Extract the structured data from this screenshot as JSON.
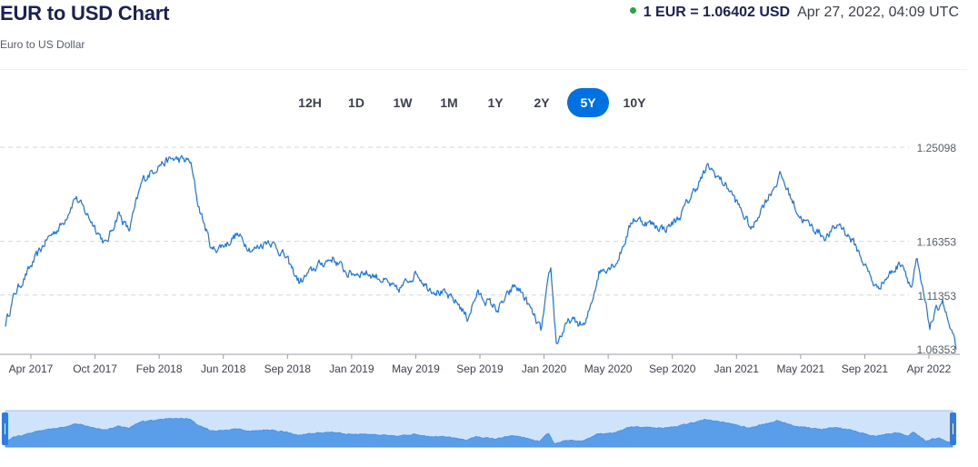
{
  "header": {
    "title": "EUR to USD Chart",
    "subtitle": "Euro to US Dollar",
    "rate": "1 EUR = 1.06402 USD",
    "timestamp": "Apr 27, 2022, 04:09 UTC"
  },
  "range_tabs": [
    {
      "label": "12H",
      "active": false
    },
    {
      "label": "1D",
      "active": false
    },
    {
      "label": "1W",
      "active": false
    },
    {
      "label": "1M",
      "active": false
    },
    {
      "label": "1Y",
      "active": false
    },
    {
      "label": "2Y",
      "active": false
    },
    {
      "label": "5Y",
      "active": true
    },
    {
      "label": "10Y",
      "active": false
    }
  ],
  "colors": {
    "line": "#1a73e8",
    "active_tab": "#0071e3",
    "navigator_fill": "#cfe3fb",
    "navigator_area": "#5a9eea",
    "navigator_handle": "#2f7ce3"
  },
  "chart_data": {
    "type": "line",
    "title": "",
    "xlabel": "",
    "ylabel": "",
    "x_ticks": [
      "Apr 2017",
      "Oct 2017",
      "Feb 2018",
      "Jun 2018",
      "Sep 2018",
      "Jan 2019",
      "May 2019",
      "Sep 2019",
      "Jan 2020",
      "May 2020",
      "Sep 2020",
      "Jan 2021",
      "May 2021",
      "Sep 2021",
      "Apr 2022"
    ],
    "y_ticks": [
      1.06353,
      1.11353,
      1.16353,
      1.25098
    ],
    "ylim": [
      1.06353,
      1.25098
    ],
    "grid": true,
    "series": [
      {
        "x": [
          "2017-04-27",
          "2017-05-15",
          "2017-06-15",
          "2017-07-15",
          "2017-08-15",
          "2017-09-08",
          "2017-10-15",
          "2017-11-06",
          "2017-11-30",
          "2017-12-20",
          "2018-01-15",
          "2018-02-16",
          "2018-03-15",
          "2018-04-17",
          "2018-05-01",
          "2018-05-29",
          "2018-06-28",
          "2018-07-15",
          "2018-08-15",
          "2018-09-15",
          "2018-10-15",
          "2018-11-13",
          "2018-12-15",
          "2019-01-15",
          "2019-02-15",
          "2019-03-15",
          "2019-04-15",
          "2019-05-20",
          "2019-06-25",
          "2019-07-15",
          "2019-08-15",
          "2019-09-15",
          "2019-10-01",
          "2019-10-20",
          "2019-11-29",
          "2019-12-31",
          "2020-01-15",
          "2020-02-20",
          "2020-03-09",
          "2020-03-20",
          "2020-04-15",
          "2020-05-15",
          "2020-06-10",
          "2020-07-15",
          "2020-08-15",
          "2020-09-15",
          "2020-10-15",
          "2020-11-10",
          "2020-12-15",
          "2021-01-06",
          "2021-02-15",
          "2021-03-31",
          "2021-04-15",
          "2021-05-25",
          "2021-06-30",
          "2021-07-15",
          "2021-08-20",
          "2021-09-15",
          "2021-10-15",
          "2021-11-24",
          "2021-12-15",
          "2022-01-13",
          "2022-01-31",
          "2022-02-10",
          "2022-03-07",
          "2022-03-31",
          "2022-04-15",
          "2022-04-27"
        ],
        "values": [
          1.087,
          1.115,
          1.14,
          1.165,
          1.18,
          1.205,
          1.178,
          1.16,
          1.19,
          1.173,
          1.22,
          1.235,
          1.24,
          1.238,
          1.2,
          1.155,
          1.162,
          1.17,
          1.155,
          1.165,
          1.15,
          1.125,
          1.14,
          1.148,
          1.133,
          1.135,
          1.13,
          1.117,
          1.135,
          1.122,
          1.115,
          1.105,
          1.092,
          1.115,
          1.1,
          1.122,
          1.115,
          1.08,
          1.14,
          1.069,
          1.09,
          1.085,
          1.135,
          1.145,
          1.185,
          1.18,
          1.175,
          1.185,
          1.215,
          1.233,
          1.212,
          1.174,
          1.192,
          1.225,
          1.187,
          1.18,
          1.167,
          1.18,
          1.16,
          1.12,
          1.13,
          1.145,
          1.12,
          1.145,
          1.085,
          1.11,
          1.082,
          1.064
        ]
      }
    ]
  }
}
